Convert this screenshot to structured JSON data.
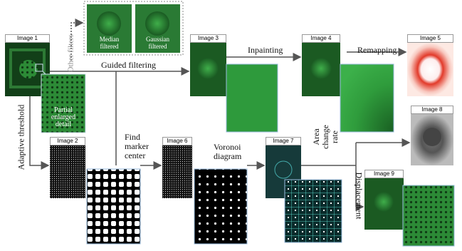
{
  "filters_box": {
    "label": "Other filters",
    "images": [
      {
        "label": "Median filtered"
      },
      {
        "label": "Gaussian filtered"
      }
    ]
  },
  "images": [
    {
      "label": "Image 1"
    },
    {
      "label": "Image 2"
    },
    {
      "label": "Image 3"
    },
    {
      "label": "Image 4"
    },
    {
      "label": "Image 5"
    },
    {
      "label": "Image 6"
    },
    {
      "label": "Image 7"
    },
    {
      "label": "Image 8"
    },
    {
      "label": "Image 9"
    }
  ],
  "detail": {
    "label": "Partial enlarged detail"
  },
  "edges": [
    {
      "label": "Guided filtering"
    },
    {
      "label": "Inpainting"
    },
    {
      "label": "Remapping"
    },
    {
      "label": "Adaptive threshold"
    },
    {
      "label": "Find marker center"
    },
    {
      "label": "Voronoi diagram"
    },
    {
      "label": "Area change rate"
    },
    {
      "label": "Displacement"
    }
  ]
}
